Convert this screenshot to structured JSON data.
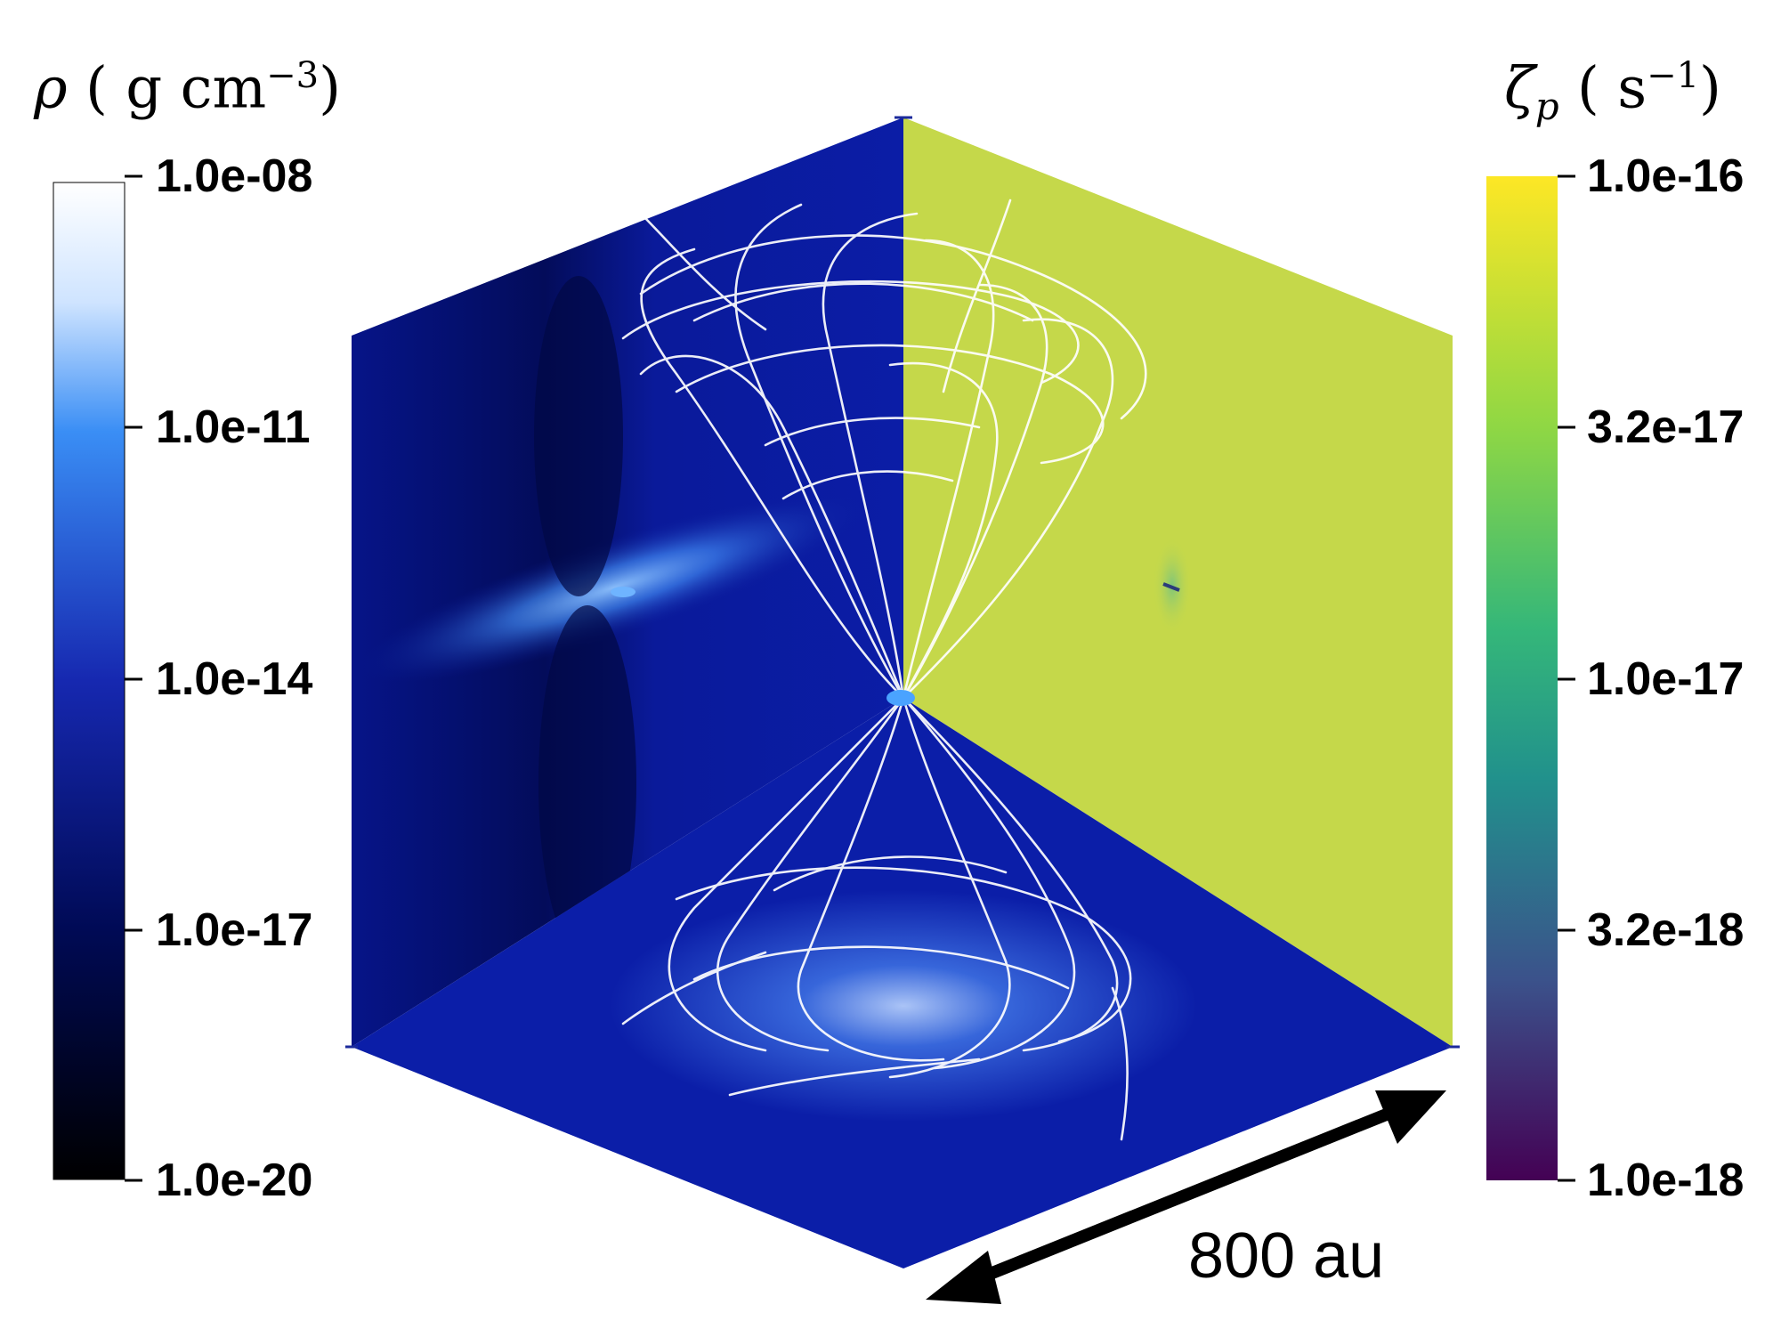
{
  "left_colorbar": {
    "symbol": "ρ",
    "unit_open": "( g cm",
    "unit_exp": "−3",
    "unit_close": ")",
    "ticks": [
      "1.0e-08",
      "1.0e-11",
      "1.0e-14",
      "1.0e-17",
      "1.0e-20"
    ],
    "colors": [
      "#ffffff",
      "#3a8ef5",
      "#1628b0",
      "#000a55",
      "#000000"
    ]
  },
  "right_colorbar": {
    "symbol": "ζ",
    "subscript": "p",
    "unit_open": "( s",
    "unit_exp": "−1",
    "unit_close": ")",
    "ticks": [
      "1.0e-16",
      "3.2e-17",
      "1.0e-17",
      "3.2e-18",
      "1.0e-18"
    ],
    "colors": [
      "#fde725",
      "#5ec962",
      "#21918c",
      "#3b528b",
      "#440154"
    ]
  },
  "scale_bar": {
    "label": "800 au"
  },
  "panel_colors": {
    "density_background": "#0a1a9a",
    "ionization_background": "#c5d84a",
    "field_lines": "#ffffff"
  }
}
